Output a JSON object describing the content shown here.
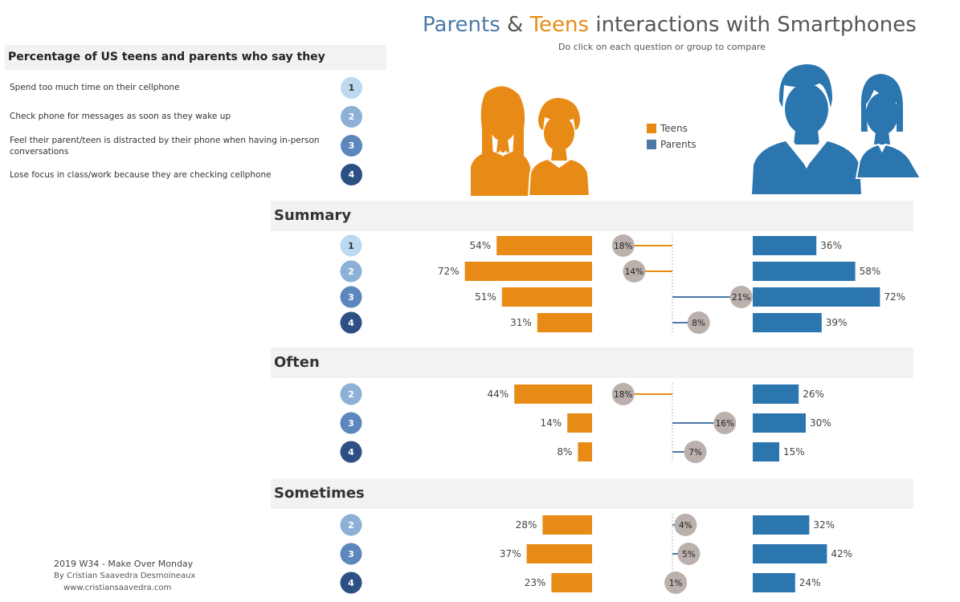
{
  "title": {
    "part1": "Parents",
    "amp": " & ",
    "part2": "Teens",
    "rest": " interactions with Smartphones"
  },
  "subtitle": "Do click on each question or group to compare",
  "question_panel": {
    "heading": "Percentage of US teens and parents who say they",
    "questions": [
      {
        "num": "1",
        "text": "Spend too much time on their cellphone"
      },
      {
        "num": "2",
        "text": "Check phone for messages as soon as they wake up"
      },
      {
        "num": "3",
        "text": "Feel their parent/teen is distracted by their phone when having in-person conversations"
      },
      {
        "num": "4",
        "text": "Lose focus in class/work because they are checking cellphone"
      }
    ]
  },
  "colors": {
    "teens": "#e88b16",
    "parents": "#2c76b0",
    "diff_circle": "#bab0ac",
    "q1": "#bcd9ef",
    "q2": "#8db1d6",
    "q3": "#5b87bd",
    "q4": "#2c4f84"
  },
  "icons": {
    "teens": "teens-silhouette-icon",
    "parents": "parents-silhouette-icon"
  },
  "legend": {
    "teens": "Teens",
    "parents": "Parents"
  },
  "chart_data": {
    "type": "bar",
    "series": [
      {
        "name": "Teens"
      },
      {
        "name": "Parents"
      }
    ],
    "sections": [
      {
        "label": "Summary",
        "rows": [
          {
            "q": "1",
            "teens": 54,
            "parents": 36,
            "gap": 18,
            "gap_label": "18%"
          },
          {
            "q": "2",
            "teens": 72,
            "parents": 58,
            "gap": 14,
            "gap_label": "14%"
          },
          {
            "q": "3",
            "teens": 51,
            "parents": 72,
            "gap": -21,
            "gap_label": "21%"
          },
          {
            "q": "4",
            "teens": 31,
            "parents": 39,
            "gap": -8,
            "gap_label": "8%"
          }
        ]
      },
      {
        "label": "Often",
        "rows": [
          {
            "q": "2",
            "teens": 44,
            "parents": 26,
            "gap": 18,
            "gap_label": "18%"
          },
          {
            "q": "3",
            "teens": 14,
            "parents": 30,
            "gap": -16,
            "gap_label": "16%"
          },
          {
            "q": "4",
            "teens": 8,
            "parents": 15,
            "gap": -7,
            "gap_label": "7%"
          }
        ]
      },
      {
        "label": "Sometimes",
        "rows": [
          {
            "q": "2",
            "teens": 28,
            "parents": 32,
            "gap": -4,
            "gap_label": "4%"
          },
          {
            "q": "3",
            "teens": 37,
            "parents": 42,
            "gap": -5,
            "gap_label": "5%"
          },
          {
            "q": "4",
            "teens": 23,
            "parents": 24,
            "gap": -1,
            "gap_label": "1%"
          }
        ]
      }
    ]
  },
  "footer": {
    "line1": "2019 W34  - Make Over Monday",
    "line2": "By Cristian Saavedra Desmoineaux",
    "line3": "www.cristiansaavedra.com"
  }
}
